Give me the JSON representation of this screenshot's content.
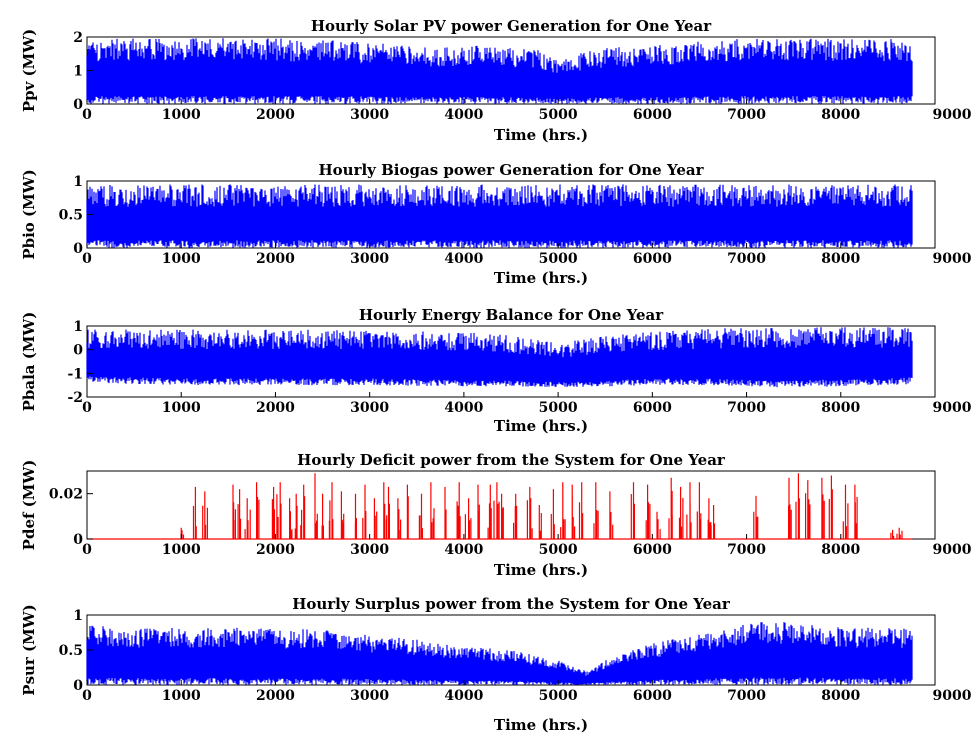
{
  "chart_data": [
    {
      "type": "line",
      "title": "Hourly Solar PV power Generation for One Year",
      "xlabel": "Time (hrs.)",
      "ylabel": "Ppv (MW)",
      "xlim": [
        0,
        9000
      ],
      "ylim": [
        0,
        2
      ],
      "xticks": [
        "0",
        "1000",
        "2000",
        "3000",
        "4000",
        "5000",
        "6000",
        "7000",
        "8000",
        "9000"
      ],
      "yticks": [
        "0",
        "1",
        "2"
      ],
      "color": "#0000ff",
      "series": [
        {
          "x": [
            0,
            1000,
            2000,
            3000,
            3500,
            4000,
            4500,
            4800,
            5000,
            5300,
            5600,
            6000,
            6600,
            7000,
            7500,
            8000,
            8500,
            8760
          ],
          "max": [
            1.95,
            1.97,
            1.98,
            1.85,
            1.7,
            1.75,
            1.7,
            1.6,
            1.3,
            1.6,
            1.7,
            1.75,
            1.95,
            1.97,
            1.95,
            1.97,
            1.95,
            1.9
          ],
          "min": [
            0,
            0,
            0,
            0,
            0,
            0,
            0,
            0,
            0,
            0,
            0,
            0,
            0,
            0,
            0,
            0,
            0,
            0
          ]
        }
      ]
    },
    {
      "type": "line",
      "title": "Hourly Biogas power Generation for One Year",
      "xlabel": "Time (hrs.)",
      "ylabel": "Pbio (MW)",
      "xlim": [
        0,
        9000
      ],
      "ylim": [
        0,
        1
      ],
      "xticks": [
        "0",
        "1000",
        "2000",
        "3000",
        "4000",
        "5000",
        "6000",
        "7000",
        "8000",
        "9000"
      ],
      "yticks": [
        "0",
        "0.5",
        "1"
      ],
      "color": "#0000ff",
      "series": [
        {
          "x": [
            0,
            8760
          ],
          "max": [
            0.95,
            0.95
          ],
          "min": [
            0,
            0
          ]
        }
      ]
    },
    {
      "type": "line",
      "title": "Hourly Energy Balance for One Year",
      "xlabel": "Time (hrs.)",
      "ylabel": "Pbala (MW)",
      "xlim": [
        0,
        9000
      ],
      "ylim": [
        -2,
        1
      ],
      "xticks": [
        "0",
        "1000",
        "2000",
        "3000",
        "4000",
        "5000",
        "6000",
        "7000",
        "8000",
        "9000"
      ],
      "yticks": [
        "-2",
        "-1",
        "0",
        "1"
      ],
      "color": "#0000ff",
      "series": [
        {
          "x": [
            0,
            1000,
            2000,
            3000,
            4000,
            4500,
            5000,
            5500,
            6000,
            6500,
            7000,
            7500,
            8000,
            8500,
            8760
          ],
          "max": [
            0.85,
            0.85,
            0.85,
            0.85,
            0.75,
            0.6,
            0.3,
            0.6,
            0.75,
            0.85,
            0.95,
            0.95,
            0.95,
            0.95,
            0.9
          ],
          "min": [
            -1.4,
            -1.5,
            -1.5,
            -1.5,
            -1.55,
            -1.55,
            -1.6,
            -1.55,
            -1.5,
            -1.5,
            -1.55,
            -1.6,
            -1.55,
            -1.5,
            -1.45
          ]
        }
      ]
    },
    {
      "type": "line",
      "title": "Hourly Deficit power from the System for One Year",
      "xlabel": "Time (hrs.)",
      "ylabel": "Pdef (MW)",
      "xlim": [
        0,
        9000
      ],
      "ylim": [
        0,
        0.03
      ],
      "xticks": [
        "0",
        "1000",
        "2000",
        "3000",
        "4000",
        "5000",
        "6000",
        "7000",
        "8000",
        "9000"
      ],
      "yticks": [
        "0",
        "0.02"
      ],
      "color": "#ff0000",
      "series": [
        {
          "x": [
            1000,
            1150,
            1250,
            1550,
            1620,
            1700,
            1800,
            1980,
            2050,
            2150,
            2220,
            2300,
            2420,
            2500,
            2600,
            2700,
            2850,
            2950,
            3050,
            3150,
            3200,
            3300,
            3400,
            3550,
            3650,
            3800,
            3950,
            4050,
            4150,
            4280,
            4350,
            4400,
            4550,
            4700,
            4800,
            4950,
            5050,
            5150,
            5250,
            5400,
            5550,
            5800,
            5950,
            6050,
            6200,
            6300,
            6400,
            6500,
            6600,
            6650,
            7100,
            7450,
            7550,
            7650,
            7800,
            7900,
            8050,
            8150,
            8550,
            8620
          ],
          "y": [
            0.005,
            0.023,
            0.021,
            0.024,
            0.022,
            0.018,
            0.025,
            0.023,
            0.025,
            0.018,
            0.02,
            0.024,
            0.029,
            0.02,
            0.025,
            0.021,
            0.02,
            0.024,
            0.018,
            0.025,
            0.023,
            0.018,
            0.024,
            0.02,
            0.025,
            0.023,
            0.025,
            0.018,
            0.024,
            0.024,
            0.025,
            0.02,
            0.02,
            0.023,
            0.015,
            0.022,
            0.025,
            0.024,
            0.025,
            0.025,
            0.021,
            0.025,
            0.024,
            0.012,
            0.027,
            0.023,
            0.025,
            0.025,
            0.018,
            0.015,
            0.019,
            0.027,
            0.029,
            0.026,
            0.027,
            0.028,
            0.024,
            0.024,
            0.004,
            0.005
          ]
        }
      ]
    },
    {
      "type": "line",
      "title": "Hourly Surplus power from the System for One Year",
      "xlabel": "Time (hrs.)",
      "ylabel": "Psur (MW)",
      "xlim": [
        0,
        9000
      ],
      "ylim": [
        0,
        1
      ],
      "xticks": [
        "0",
        "1000",
        "2000",
        "3000",
        "4000",
        "5000",
        "6000",
        "7000",
        "8000",
        "9000"
      ],
      "yticks": [
        "0",
        "0.5",
        "1"
      ],
      "color": "#0000ff",
      "series": [
        {
          "x": [
            0,
            500,
            1000,
            1500,
            2000,
            2500,
            3000,
            3500,
            4000,
            4500,
            5000,
            5300,
            5500,
            5800,
            6000,
            6500,
            7000,
            7500,
            8000,
            8500,
            8760
          ],
          "max": [
            0.85,
            0.82,
            0.82,
            0.82,
            0.8,
            0.8,
            0.72,
            0.65,
            0.55,
            0.5,
            0.35,
            0.2,
            0.35,
            0.5,
            0.6,
            0.72,
            0.9,
            0.9,
            0.82,
            0.82,
            0.8
          ],
          "min": [
            0,
            0,
            0,
            0,
            0,
            0,
            0,
            0,
            0,
            0,
            0,
            0,
            0,
            0,
            0,
            0,
            0,
            0,
            0,
            0,
            0
          ]
        }
      ]
    }
  ]
}
